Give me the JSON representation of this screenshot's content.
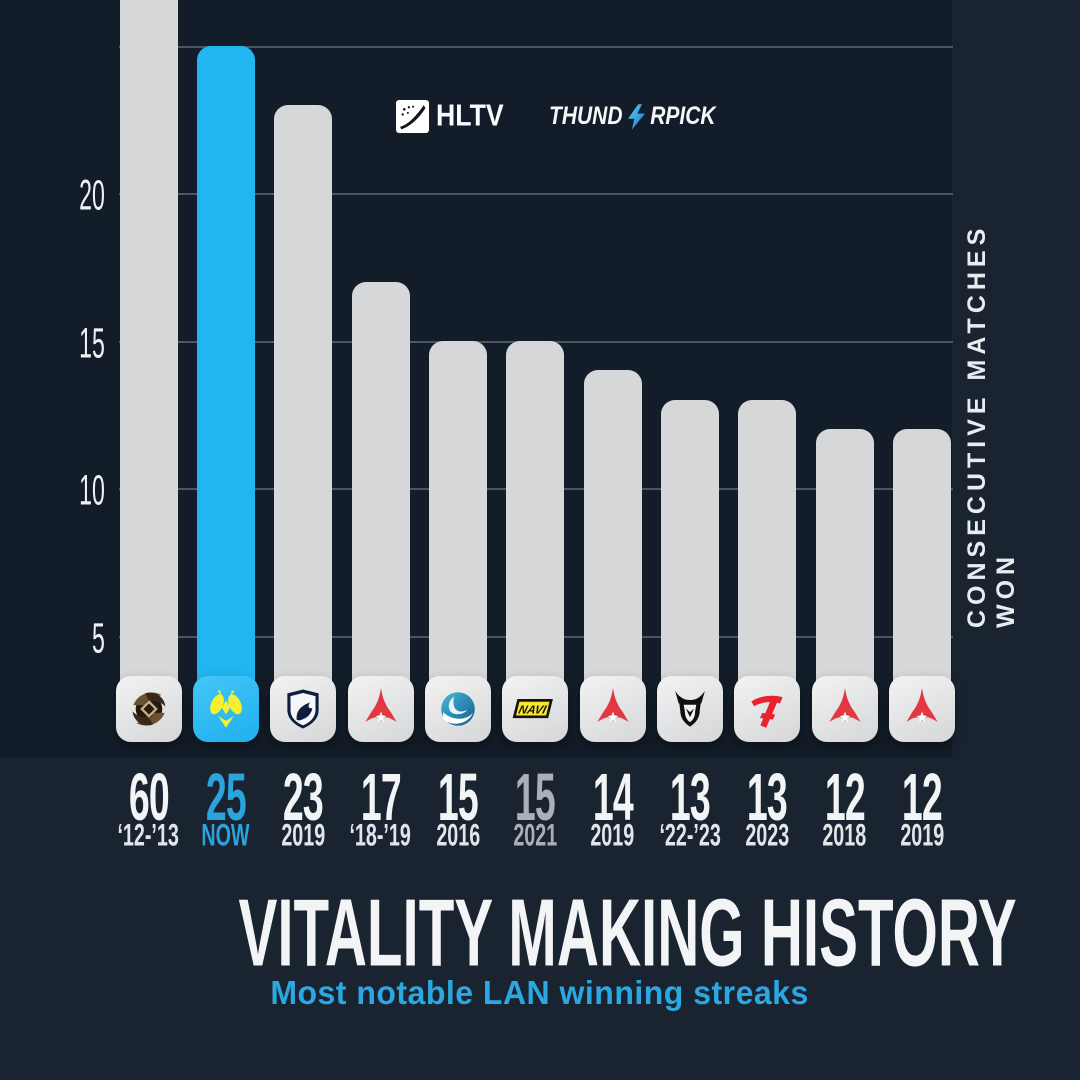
{
  "page": {
    "background": "#1a2431",
    "plot_panel": "#131d29"
  },
  "header": {
    "hltv": {
      "label": "HLTV"
    },
    "sponsor": {
      "name": "THUNDERPICK",
      "left": "THUND",
      "right": "RPICK"
    }
  },
  "chart_data": {
    "type": "bar",
    "title": "VITALITY MAKING HISTORY",
    "subtitle": "Most notable LAN winning streaks",
    "ylabel": "CONSECUTIVE MATCHES WON",
    "xlabel": "",
    "ylim": [
      0,
      25
    ],
    "gridlines": [
      5,
      10,
      15,
      20,
      25
    ],
    "labeled_ticks": [
      20,
      15,
      10,
      5
    ],
    "grid": "horizontal",
    "legend_position": "none",
    "colors": {
      "bar": "#d6d7d8",
      "highlight_bar": "#22b5f1",
      "label": "#f3f4f5",
      "highlight_label": "#2ba4dd",
      "muted_label": "#aab0b7",
      "gridline": "#4a5663"
    },
    "bars": [
      {
        "team": "Ninjas in Pyjamas",
        "icon": "nip",
        "value": 60,
        "period": "‘12-’13"
      },
      {
        "team": "Vitality",
        "icon": "vitality",
        "value": 25,
        "period": "NOW",
        "highlight": true
      },
      {
        "team": "Team Liquid",
        "icon": "liquid",
        "value": 23,
        "period": "2019"
      },
      {
        "team": "Astralis",
        "icon": "astralis",
        "value": 17,
        "period": "‘18-’19"
      },
      {
        "team": "Luminosity",
        "icon": "luminosity",
        "value": 15,
        "period": "2016"
      },
      {
        "team": "Natus Vincere",
        "icon": "navi",
        "value": 15,
        "period": "2021",
        "muted": true
      },
      {
        "team": "Astralis",
        "icon": "astralis",
        "value": 14,
        "period": "2019"
      },
      {
        "team": "G2",
        "icon": "g2",
        "value": 13,
        "period": "‘22-’23"
      },
      {
        "team": "FaZe",
        "icon": "faze",
        "value": 13,
        "period": "2023"
      },
      {
        "team": "Astralis",
        "icon": "astralis",
        "value": 12,
        "period": "2018"
      },
      {
        "team": "Astralis",
        "icon": "astralis",
        "value": 12,
        "period": "2019"
      }
    ]
  }
}
